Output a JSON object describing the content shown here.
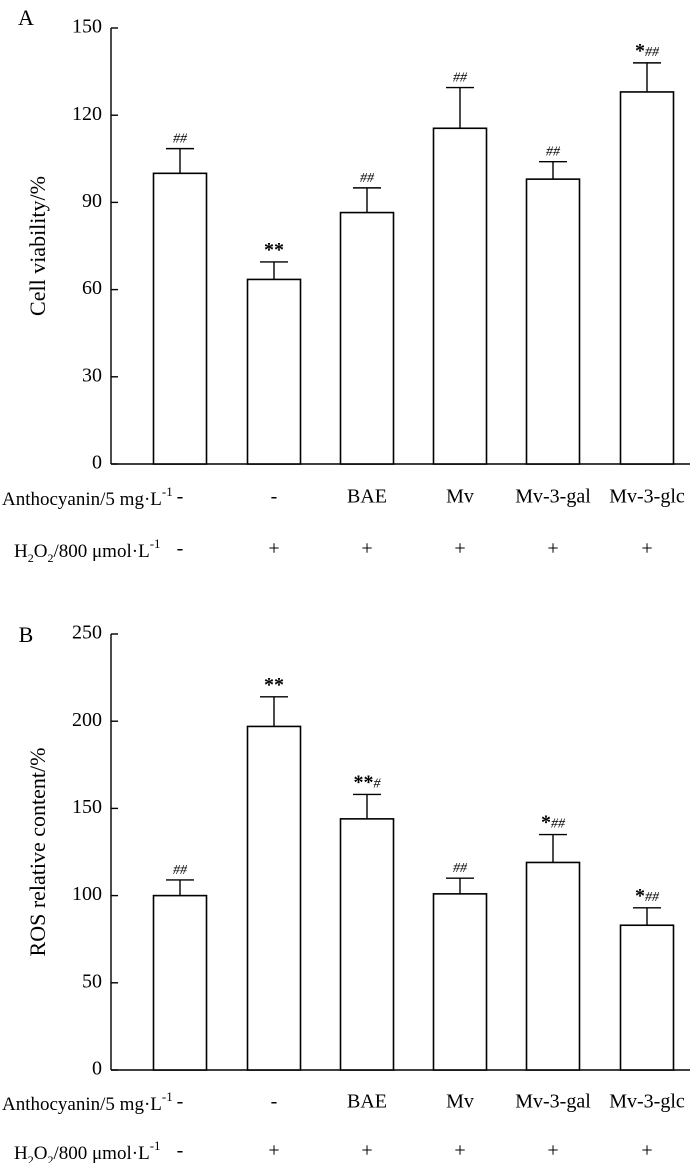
{
  "chart_data": [
    {
      "panel": "A",
      "type": "bar",
      "ylabel": "Cell viability/%",
      "ylim": [
        0,
        150
      ],
      "yticks": [
        "0",
        "30",
        "60",
        "90",
        "120",
        "150"
      ],
      "categories": [
        "-",
        "-",
        "BAE",
        "Mv",
        "Mv-3-gal",
        "Mv-3-glc"
      ],
      "values": [
        100,
        63.5,
        86.5,
        115.5,
        98,
        128
      ],
      "errors": [
        8.5,
        6,
        8.5,
        14,
        6,
        10
      ],
      "stars": [
        "",
        "**",
        "",
        "",
        "",
        "*"
      ],
      "hashes": [
        "##",
        "",
        "##",
        "##",
        "##",
        "##"
      ],
      "row1_label": "Anthocyanin/5 mg·L",
      "row1_sup": "-1",
      "row2_label": "H",
      "row2_sub1": "2",
      "row2_mid": "O",
      "row2_sub2": "2",
      "row2_rest": "/800 μmol·L",
      "row2_sup": "-1",
      "h2o2": [
        "-",
        "+",
        "+",
        "+",
        "+",
        "+"
      ]
    },
    {
      "panel": "B",
      "type": "bar",
      "ylabel": "ROS relative content/%",
      "ylim": [
        0,
        250
      ],
      "yticks": [
        "0",
        "50",
        "100",
        "150",
        "200",
        "250"
      ],
      "categories": [
        "-",
        "-",
        "BAE",
        "Mv",
        "Mv-3-gal",
        "Mv-3-glc"
      ],
      "values": [
        100,
        197,
        144,
        101,
        119,
        83
      ],
      "errors": [
        9,
        17,
        14,
        9,
        16,
        10
      ],
      "stars": [
        "",
        "**",
        "**",
        "",
        "*",
        "*"
      ],
      "hashes": [
        "##",
        "",
        "#",
        "##",
        "##",
        "##"
      ],
      "row1_label": "Anthocyanin/5 mg·L",
      "row1_sup": "-1",
      "row2_label": "H",
      "row2_sub1": "2",
      "row2_mid": "O",
      "row2_sub2": "2",
      "row2_rest": "/800 μmol·L",
      "row2_sup": "-1",
      "h2o2": [
        "-",
        "+",
        "+",
        "+",
        "+",
        "+"
      ]
    }
  ]
}
